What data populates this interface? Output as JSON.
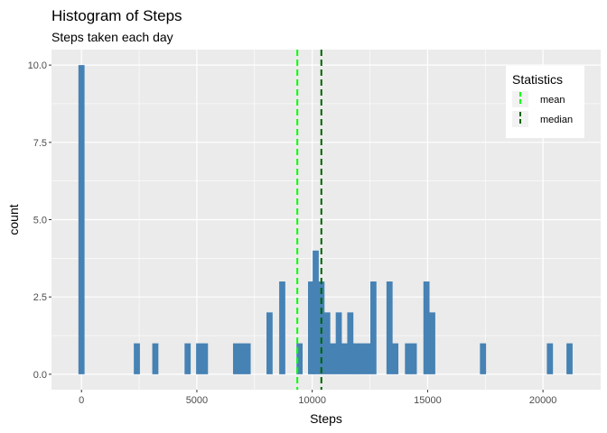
{
  "chart_data": {
    "type": "bar",
    "title": "Histogram of Steps",
    "subtitle": "Steps taken each day",
    "xlabel": "Steps",
    "ylabel": "count",
    "xlim": [
      -1300,
      22500
    ],
    "ylim": [
      -0.5,
      10.5
    ],
    "x_ticks": [
      0,
      5000,
      10000,
      15000,
      20000
    ],
    "x_tick_labels": [
      "0",
      "5000",
      "10000",
      "15000",
      "20000"
    ],
    "y_ticks": [
      0,
      2.5,
      5,
      7.5,
      10
    ],
    "y_tick_labels": [
      "0.0",
      "2.5",
      "5.0",
      "7.5",
      "10.0"
    ],
    "grid": true,
    "bin_width": 265,
    "bar_color": "#4682B4",
    "bins": [
      {
        "x": 0,
        "count": 10
      },
      {
        "x": 2400,
        "count": 1
      },
      {
        "x": 3200,
        "count": 1
      },
      {
        "x": 4600,
        "count": 1
      },
      {
        "x": 5100,
        "count": 1
      },
      {
        "x": 5350,
        "count": 1
      },
      {
        "x": 6700,
        "count": 1
      },
      {
        "x": 6950,
        "count": 1
      },
      {
        "x": 7200,
        "count": 1
      },
      {
        "x": 8150,
        "count": 2
      },
      {
        "x": 8700,
        "count": 3
      },
      {
        "x": 9450,
        "count": 1
      },
      {
        "x": 9950,
        "count": 3
      },
      {
        "x": 10150,
        "count": 4
      },
      {
        "x": 10400,
        "count": 3
      },
      {
        "x": 10650,
        "count": 2
      },
      {
        "x": 10900,
        "count": 1
      },
      {
        "x": 11150,
        "count": 2
      },
      {
        "x": 11400,
        "count": 1
      },
      {
        "x": 11650,
        "count": 2
      },
      {
        "x": 11900,
        "count": 1
      },
      {
        "x": 12150,
        "count": 1
      },
      {
        "x": 12400,
        "count": 1
      },
      {
        "x": 12650,
        "count": 3
      },
      {
        "x": 13350,
        "count": 3
      },
      {
        "x": 13600,
        "count": 1
      },
      {
        "x": 14150,
        "count": 1
      },
      {
        "x": 14400,
        "count": 1
      },
      {
        "x": 14950,
        "count": 3
      },
      {
        "x": 15200,
        "count": 2
      },
      {
        "x": 17400,
        "count": 1
      },
      {
        "x": 20300,
        "count": 1
      },
      {
        "x": 21150,
        "count": 1
      }
    ],
    "reference_lines": [
      {
        "name": "mean",
        "x": 9354,
        "color": "#00ff00"
      },
      {
        "name": "median",
        "x": 10395,
        "color": "#006400"
      }
    ],
    "legend": {
      "title": "Statistics",
      "placement": "top-right",
      "entries": [
        "mean",
        "median"
      ]
    }
  }
}
